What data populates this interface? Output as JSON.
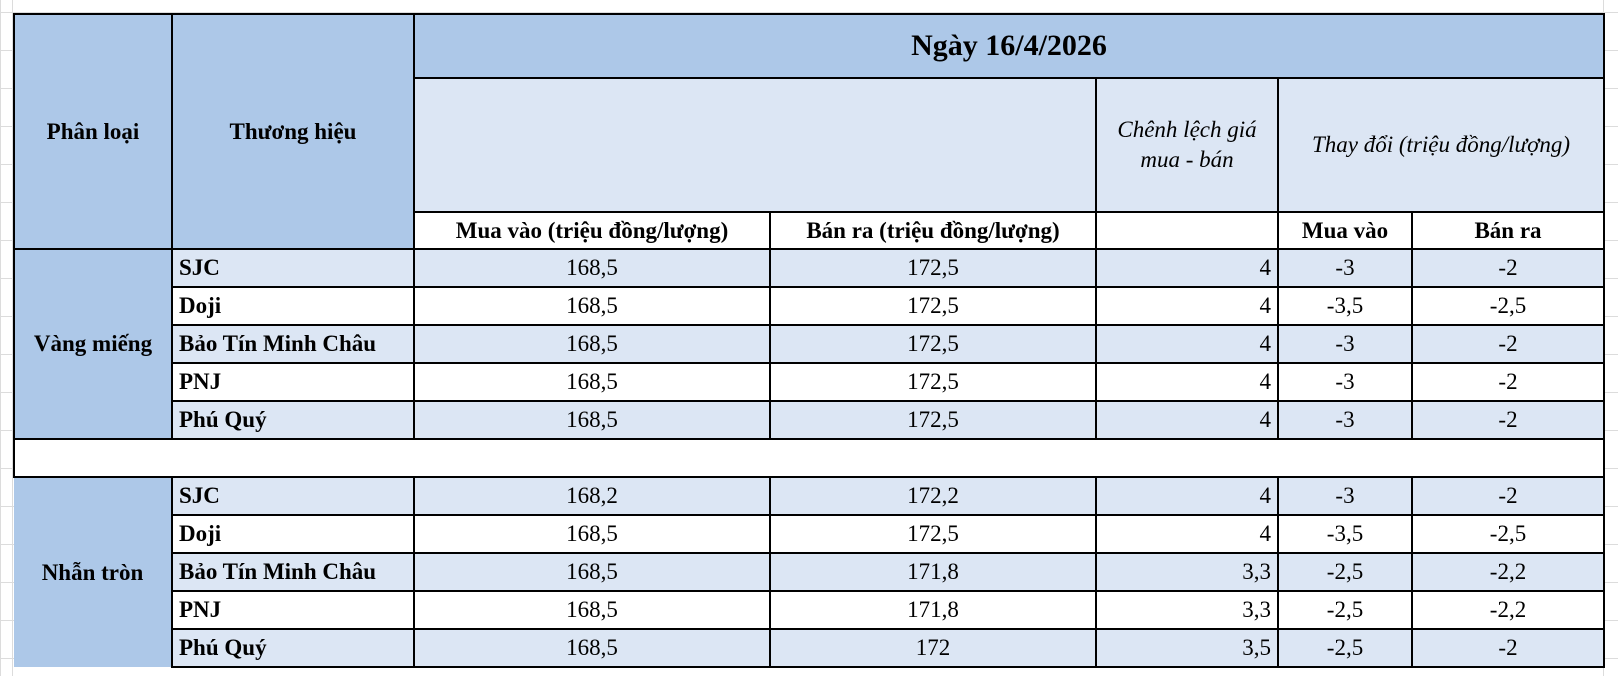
{
  "colors": {
    "header_dark": "#adc8e8",
    "header_light": "#dce6f4",
    "row_light": "#dce6f4",
    "row_white": "#ffffff",
    "border": "#000000"
  },
  "header": {
    "category": "Phân loại",
    "brand": "Thương hiệu",
    "date": "Ngày 16/4/2026",
    "spread": "Chênh lệch giá mua - bán",
    "change": "Thay đổi (triệu đồng/lượng)",
    "buy": "Mua vào (triệu đồng/lượng)",
    "sell": "Bán ra (triệu đồng/lượng)",
    "change_buy": "Mua vào",
    "change_sell": "Bán ra"
  },
  "groups": [
    {
      "category": "Vàng miếng",
      "rows": [
        {
          "brand": "SJC",
          "buy": "168,5",
          "sell": "172,5",
          "spread": "4",
          "change_buy": "-3",
          "change_sell": "-2"
        },
        {
          "brand": "Doji",
          "buy": "168,5",
          "sell": "172,5",
          "spread": "4",
          "change_buy": "-3,5",
          "change_sell": "-2,5"
        },
        {
          "brand": "Bảo Tín Minh Châu",
          "buy": "168,5",
          "sell": "172,5",
          "spread": "4",
          "change_buy": "-3",
          "change_sell": "-2"
        },
        {
          "brand": "PNJ",
          "buy": "168,5",
          "sell": "172,5",
          "spread": "4",
          "change_buy": "-3",
          "change_sell": "-2"
        },
        {
          "brand": "Phú Quý",
          "buy": "168,5",
          "sell": "172,5",
          "spread": "4",
          "change_buy": "-3",
          "change_sell": "-2"
        }
      ]
    },
    {
      "category": "Nhẫn tròn",
      "rows": [
        {
          "brand": "SJC",
          "buy": "168,2",
          "sell": "172,2",
          "spread": "4",
          "change_buy": "-3",
          "change_sell": "-2"
        },
        {
          "brand": "Doji",
          "buy": "168,5",
          "sell": "172,5",
          "spread": "4",
          "change_buy": "-3,5",
          "change_sell": "-2,5"
        },
        {
          "brand": "Bảo Tín Minh Châu",
          "buy": "168,5",
          "sell": "171,8",
          "spread": "3,3",
          "change_buy": "-2,5",
          "change_sell": "-2,2"
        },
        {
          "brand": "PNJ",
          "buy": "168,5",
          "sell": "171,8",
          "spread": "3,3",
          "change_buy": "-2,5",
          "change_sell": "-2,2"
        },
        {
          "brand": "Phú Quý",
          "buy": "168,5",
          "sell": "172",
          "spread": "3,5",
          "change_buy": "-2,5",
          "change_sell": "-2"
        }
      ]
    }
  ]
}
